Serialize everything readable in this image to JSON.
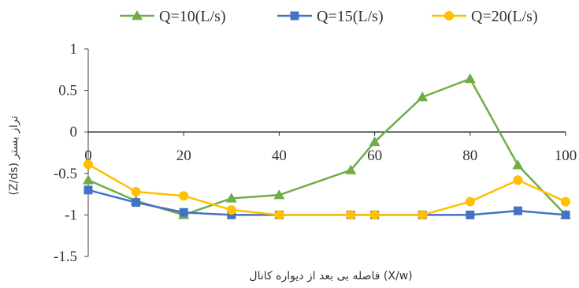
{
  "chart_data": {
    "type": "line",
    "xlabel": "فاصله بی بعد از دیواره کانال (X/w)",
    "ylabel": "(Z/ds) تراز بستر",
    "xlim": [
      0,
      100
    ],
    "ylim": [
      -1.5,
      1
    ],
    "x_ticks": [
      "0",
      "20",
      "40",
      "60",
      "80",
      "100"
    ],
    "y_ticks": [
      "1",
      "0.5",
      "0",
      "-0.5",
      "-1",
      "-1.5"
    ],
    "grid": false,
    "legend_position": "top",
    "series": [
      {
        "name": "Q=10(L/s)",
        "color": "#70AD47",
        "marker": "triangle",
        "x": [
          0,
          10,
          20,
          30,
          40,
          55,
          60,
          70,
          80,
          90,
          100
        ],
        "y": [
          -0.58,
          -0.83,
          -1.0,
          -0.8,
          -0.76,
          -0.46,
          -0.12,
          0.42,
          0.64,
          -0.4,
          -1.0
        ]
      },
      {
        "name": "Q=15(L/s)",
        "color": "#4472C4",
        "marker": "square",
        "x": [
          0,
          10,
          20,
          30,
          40,
          55,
          60,
          70,
          80,
          90,
          100
        ],
        "y": [
          -0.7,
          -0.85,
          -0.97,
          -1.0,
          -1.0,
          -1.0,
          -1.0,
          -1.0,
          -1.0,
          -0.95,
          -1.0
        ]
      },
      {
        "name": "Q=20(L/s)",
        "color": "#FFC000",
        "marker": "circle",
        "x": [
          0,
          10,
          20,
          30,
          40,
          55,
          60,
          70,
          80,
          90,
          100
        ],
        "y": [
          -0.39,
          -0.72,
          -0.77,
          -0.94,
          -1.0,
          -1.0,
          -1.0,
          -1.0,
          -0.84,
          -0.58,
          -0.84
        ]
      }
    ]
  }
}
